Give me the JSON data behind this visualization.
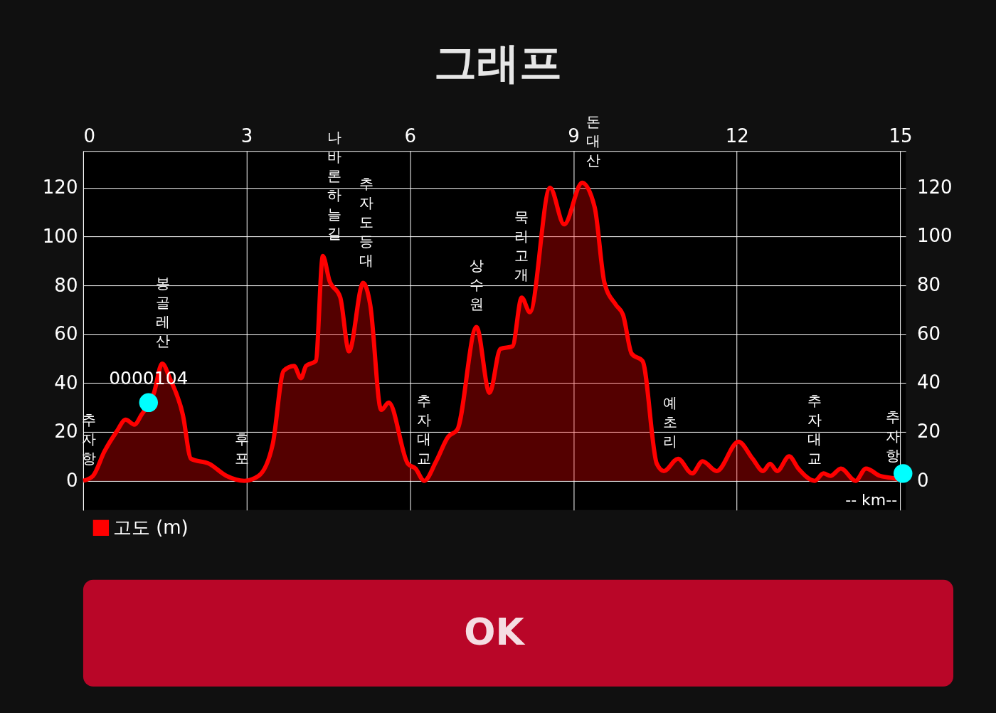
{
  "chart_data": {
    "type": "area",
    "title": "그래프",
    "xlabel": "-- km--",
    "x": [
      0,
      0.18,
      0.39,
      0.61,
      0.78,
      0.94,
      1.07,
      1.3,
      1.45,
      1.59,
      1.83,
      1.98,
      2.31,
      2.63,
      2.96,
      3.22,
      3.48,
      3.68,
      3.87,
      4.0,
      4.09,
      4.27,
      4.4,
      4.52,
      4.72,
      4.88,
      5.14,
      5.27,
      5.47,
      5.61,
      5.96,
      6.1,
      6.26,
      6.48,
      6.7,
      6.87,
      7.22,
      7.46,
      7.66,
      7.88,
      8.05,
      8.2,
      8.57,
      8.83,
      9.16,
      9.39,
      9.57,
      9.78,
      9.91,
      10.07,
      10.27,
      10.53,
      10.66,
      10.92,
      11.18,
      11.37,
      11.63,
      12.03,
      12.29,
      12.48,
      12.61,
      12.74,
      12.96,
      13.13,
      13.43,
      13.59,
      13.72,
      13.91,
      14.18,
      14.37,
      14.63,
      14.89,
      15.05
    ],
    "series": [
      {
        "name": "고도 (m)",
        "color": "#ff0000",
        "values": [
          0,
          2,
          12,
          20,
          25,
          23,
          27,
          36,
          48,
          42,
          27,
          9,
          7,
          2,
          0,
          2,
          15,
          45,
          47,
          42,
          47,
          49,
          92,
          82,
          75,
          53,
          81,
          72,
          29,
          32,
          7,
          5,
          0,
          8,
          18,
          21,
          63,
          36,
          54,
          55,
          75,
          69,
          120,
          105,
          122,
          112,
          81,
          72,
          68,
          52,
          49,
          7,
          4,
          9,
          3,
          8,
          4,
          16,
          9,
          4,
          7,
          4,
          10,
          5,
          0,
          3,
          2,
          5,
          0,
          5,
          2,
          1,
          0
        ]
      },
      {
        "type": "scatter",
        "color": "#00ffff",
        "marker": "circle",
        "x": [
          1.2,
          15.05
        ],
        "values": [
          32,
          3
        ]
      }
    ],
    "xlim": [
      0,
      15.1
    ],
    "xticks": [
      0,
      3,
      6,
      9,
      12,
      15
    ],
    "ylim": [
      -12,
      135
    ],
    "yticks": [
      0,
      20,
      40,
      60,
      80,
      100,
      120
    ],
    "y2lim": [
      -12,
      135
    ],
    "y2ticks": [
      0,
      20,
      40,
      60,
      80,
      100,
      120
    ],
    "grid": true,
    "legend": "bottom left",
    "annotations": [
      {
        "text": "0000104",
        "x": 1.2,
        "y": 32
      },
      {
        "text": "추자항",
        "x": 0.1,
        "y": 0
      },
      {
        "text": "봉골레산",
        "x": 1.47,
        "y": 48
      },
      {
        "text": "후포",
        "x": 2.92,
        "y": 0
      },
      {
        "text": "나바론하늘길",
        "x": 4.4,
        "y": 92
      },
      {
        "text": "추자도등대",
        "x": 5.2,
        "y": 81
      },
      {
        "text": "추자대교",
        "x": 6.26,
        "y": 0
      },
      {
        "text": "상수원",
        "x": 7.22,
        "y": 63
      },
      {
        "text": "묵리고개",
        "x": 8.05,
        "y": 75
      },
      {
        "text": "돈대산",
        "x": 9.16,
        "y": 122
      },
      {
        "text": "예초리",
        "x": 10.78,
        "y": 7
      },
      {
        "text": "추자대교",
        "x": 13.43,
        "y": 0
      },
      {
        "text": "추자항",
        "x": 14.87,
        "y": 1
      },
      "OK"
    ]
  }
}
